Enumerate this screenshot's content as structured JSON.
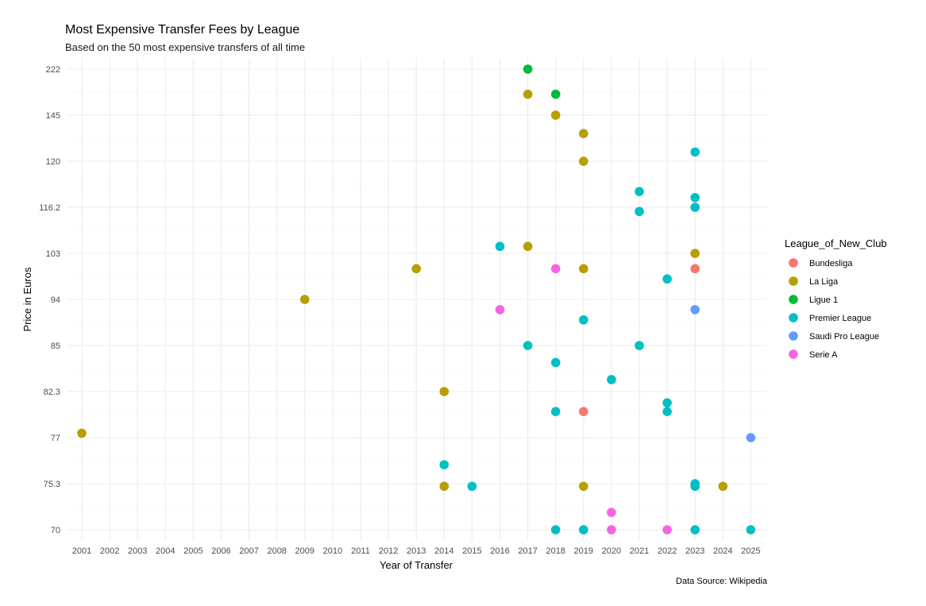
{
  "chart_data": {
    "type": "scatter",
    "title": "Most Expensive Transfer Fees by League",
    "subtitle": "Based on the 50 most expensive transfers of all time",
    "xlabel": "Year of Transfer",
    "ylabel": "Price in Euros",
    "caption": "Data Source: Wikipedia",
    "legend_title": "League_of_New_Club",
    "legend_position": "right",
    "grid": true,
    "x_ticks": [
      "2001",
      "2002",
      "2003",
      "2004",
      "2005",
      "2006",
      "2007",
      "2008",
      "2009",
      "2010",
      "2011",
      "2012",
      "2013",
      "2014",
      "2015",
      "2016",
      "2017",
      "2018",
      "2019",
      "2020",
      "2021",
      "2022",
      "2023",
      "2024",
      "2025"
    ],
    "y_ticks": [
      "70",
      "75.3",
      "77",
      "82.3",
      "85",
      "94",
      "103",
      "116.2",
      "120",
      "145",
      "222"
    ],
    "colors": {
      "Bundesliga": "#F8766D",
      "La Liga": "#B79F00",
      "Ligue 1": "#00BA38",
      "Premier League": "#00BFC4",
      "Saudi Pro League": "#619CFF",
      "Serie A": "#F564E3"
    },
    "series": [
      {
        "name": "Bundesliga",
        "points": [
          [
            2023,
            100
          ],
          [
            2019,
            80
          ]
        ]
      },
      {
        "name": "La Liga",
        "points": [
          [
            2017,
            180
          ],
          [
            2018,
            145
          ],
          [
            2019,
            135
          ],
          [
            2019,
            120
          ],
          [
            2017,
            105
          ],
          [
            2023,
            103
          ],
          [
            2013,
            100
          ],
          [
            2019,
            100
          ],
          [
            2009,
            94
          ],
          [
            2014,
            82.3
          ],
          [
            2001,
            77.5
          ],
          [
            2014,
            75
          ],
          [
            2019,
            75
          ],
          [
            2024,
            75
          ]
        ]
      },
      {
        "name": "Ligue 1",
        "points": [
          [
            2017,
            222
          ],
          [
            2018,
            180
          ]
        ]
      },
      {
        "name": "Premier League",
        "points": [
          [
            2023,
            125
          ],
          [
            2021,
            117.5
          ],
          [
            2023,
            117
          ],
          [
            2023,
            116.2
          ],
          [
            2021,
            115
          ],
          [
            2016,
            105
          ],
          [
            2022,
            98
          ],
          [
            2019,
            90
          ],
          [
            2017,
            85
          ],
          [
            2021,
            85
          ],
          [
            2018,
            84
          ],
          [
            2020,
            83
          ],
          [
            2022,
            81
          ],
          [
            2018,
            80
          ],
          [
            2022,
            80
          ],
          [
            2014,
            76
          ],
          [
            2023,
            75.3
          ],
          [
            2015,
            75
          ],
          [
            2023,
            75
          ],
          [
            2018,
            70
          ],
          [
            2019,
            70
          ],
          [
            2023,
            70
          ],
          [
            2025,
            70
          ]
        ]
      },
      {
        "name": "Saudi Pro League",
        "points": [
          [
            2023,
            92
          ],
          [
            2025,
            77
          ]
        ]
      },
      {
        "name": "Serie A",
        "points": [
          [
            2018,
            100
          ],
          [
            2016,
            92
          ],
          [
            2020,
            72
          ],
          [
            2020,
            70
          ],
          [
            2022,
            70
          ]
        ]
      }
    ]
  }
}
